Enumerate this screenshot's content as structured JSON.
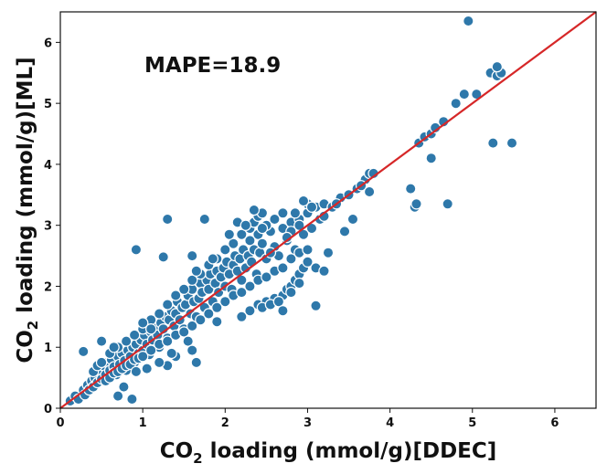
{
  "chart_data": {
    "type": "scatter",
    "annotation": "MAPE=18.9",
    "xlabel": {
      "prefix": "CO",
      "subscript": "2",
      "suffix": " loading (mmol/g)[DDEC]"
    },
    "ylabel": {
      "prefix": "CO",
      "subscript": "2",
      "suffix": " loading (mmol/g)[ML]"
    },
    "xlim": [
      0,
      6.5
    ],
    "ylim": [
      0,
      6.5
    ],
    "xticks": [
      0,
      1,
      2,
      3,
      4,
      5,
      6
    ],
    "yticks": [
      0,
      1,
      2,
      3,
      4,
      5,
      6
    ],
    "point_color": "#2e78aa",
    "line_color": "#d62728",
    "reference_line": {
      "label": "y = x",
      "from": [
        0,
        0
      ],
      "to": [
        6.5,
        6.5
      ]
    },
    "series": [
      {
        "name": "samples",
        "points": [
          [
            0.12,
            0.12
          ],
          [
            0.18,
            0.2
          ],
          [
            0.22,
            0.15
          ],
          [
            0.28,
            0.3
          ],
          [
            0.3,
            0.22
          ],
          [
            0.33,
            0.38
          ],
          [
            0.35,
            0.3
          ],
          [
            0.38,
            0.45
          ],
          [
            0.4,
            0.35
          ],
          [
            0.42,
            0.5
          ],
          [
            0.45,
            0.42
          ],
          [
            0.47,
            0.6
          ],
          [
            0.5,
            0.48
          ],
          [
            0.52,
            0.7
          ],
          [
            0.55,
            0.55
          ],
          [
            0.57,
            0.75
          ],
          [
            0.6,
            0.62
          ],
          [
            0.62,
            0.8
          ],
          [
            0.65,
            0.68
          ],
          [
            0.68,
            0.55
          ],
          [
            0.7,
            0.85
          ],
          [
            0.72,
            0.72
          ],
          [
            0.75,
            0.9
          ],
          [
            0.78,
            0.78
          ],
          [
            0.8,
            0.62
          ],
          [
            0.82,
            0.95
          ],
          [
            0.85,
            0.85
          ],
          [
            0.88,
            1.0
          ],
          [
            0.9,
            0.75
          ],
          [
            0.92,
            1.05
          ],
          [
            0.95,
            0.9
          ],
          [
            0.98,
            1.12
          ],
          [
            1.0,
            0.95
          ],
          [
            1.02,
            1.2
          ],
          [
            1.05,
            1.05
          ],
          [
            1.08,
            0.88
          ],
          [
            1.1,
            1.25
          ],
          [
            1.12,
            1.12
          ],
          [
            1.15,
            1.35
          ],
          [
            1.18,
            1.2
          ],
          [
            1.2,
            1.0
          ],
          [
            1.22,
            1.4
          ],
          [
            1.25,
            1.3
          ],
          [
            1.28,
            1.5
          ],
          [
            1.3,
            1.15
          ],
          [
            1.32,
            1.45
          ],
          [
            1.35,
            1.6
          ],
          [
            1.38,
            1.35
          ],
          [
            1.4,
            1.55
          ],
          [
            1.42,
            1.75
          ],
          [
            1.45,
            1.45
          ],
          [
            1.48,
            1.65
          ],
          [
            1.5,
            1.3
          ],
          [
            1.52,
            1.7
          ],
          [
            1.55,
            1.85
          ],
          [
            1.58,
            1.55
          ],
          [
            1.6,
            1.95
          ],
          [
            1.62,
            1.75
          ],
          [
            1.65,
            1.5
          ],
          [
            1.68,
            1.8
          ],
          [
            1.7,
            2.05
          ],
          [
            1.72,
            1.9
          ],
          [
            1.75,
            1.65
          ],
          [
            1.78,
            2.1
          ],
          [
            1.8,
            1.95
          ],
          [
            1.82,
            2.2
          ],
          [
            1.85,
            1.75
          ],
          [
            1.88,
            2.05
          ],
          [
            1.9,
            2.25
          ],
          [
            1.92,
            1.9
          ],
          [
            1.95,
            2.15
          ],
          [
            1.98,
            2.3
          ],
          [
            2.0,
            2.0
          ],
          [
            2.02,
            2.4
          ],
          [
            2.05,
            2.2
          ],
          [
            2.08,
            1.95
          ],
          [
            2.1,
            2.35
          ],
          [
            2.12,
            2.5
          ],
          [
            2.15,
            2.25
          ],
          [
            2.18,
            2.45
          ],
          [
            2.2,
            2.1
          ],
          [
            2.22,
            2.6
          ],
          [
            2.25,
            2.3
          ],
          [
            2.28,
            2.5
          ],
          [
            2.3,
            2.75
          ],
          [
            2.32,
            2.4
          ],
          [
            2.35,
            2.6
          ],
          [
            2.38,
            2.2
          ],
          [
            2.4,
            2.85
          ],
          [
            2.42,
            2.55
          ],
          [
            2.45,
            2.7
          ],
          [
            2.5,
            2.45
          ],
          [
            2.55,
            2.9
          ],
          [
            2.6,
            2.65
          ],
          [
            2.65,
            2.5
          ],
          [
            2.7,
            2.95
          ],
          [
            2.75,
            2.75
          ],
          [
            2.8,
            3.05
          ],
          [
            2.85,
            2.6
          ],
          [
            2.9,
            3.1
          ],
          [
            2.95,
            2.85
          ],
          [
            3.0,
            3.2
          ],
          [
            3.05,
            2.95
          ],
          [
            3.1,
            3.3
          ],
          [
            3.15,
            3.1
          ],
          [
            3.2,
            3.35
          ],
          [
            3.3,
            3.3
          ],
          [
            3.4,
            3.45
          ],
          [
            3.5,
            3.5
          ],
          [
            3.6,
            3.6
          ],
          [
            3.7,
            3.75
          ],
          [
            3.75,
            3.85
          ],
          [
            0.55,
            0.45
          ],
          [
            0.6,
            0.5
          ],
          [
            0.65,
            0.58
          ],
          [
            0.7,
            0.6
          ],
          [
            0.75,
            0.65
          ],
          [
            0.8,
            0.7
          ],
          [
            0.85,
            0.72
          ],
          [
            0.9,
            0.8
          ],
          [
            0.95,
            0.82
          ],
          [
            1.0,
            0.85
          ],
          [
            1.1,
            0.95
          ],
          [
            1.2,
            1.05
          ],
          [
            1.3,
            1.1
          ],
          [
            1.4,
            1.2
          ],
          [
            1.5,
            1.25
          ],
          [
            1.6,
            1.35
          ],
          [
            1.7,
            1.45
          ],
          [
            1.8,
            1.55
          ],
          [
            1.9,
            1.65
          ],
          [
            2.0,
            1.75
          ],
          [
            2.1,
            1.85
          ],
          [
            2.2,
            1.9
          ],
          [
            2.3,
            2.0
          ],
          [
            2.4,
            2.1
          ],
          [
            2.5,
            2.15
          ],
          [
            2.6,
            2.25
          ],
          [
            2.7,
            2.3
          ],
          [
            2.8,
            2.45
          ],
          [
            2.9,
            2.55
          ],
          [
            3.0,
            2.6
          ],
          [
            0.4,
            0.6
          ],
          [
            0.45,
            0.7
          ],
          [
            0.5,
            0.75
          ],
          [
            0.6,
            0.9
          ],
          [
            0.7,
            1.0
          ],
          [
            0.8,
            1.1
          ],
          [
            0.9,
            1.2
          ],
          [
            1.0,
            1.3
          ],
          [
            1.1,
            1.45
          ],
          [
            1.2,
            1.55
          ],
          [
            1.3,
            1.7
          ],
          [
            1.4,
            1.85
          ],
          [
            1.5,
            1.95
          ],
          [
            1.6,
            2.1
          ],
          [
            1.7,
            2.2
          ],
          [
            1.8,
            2.35
          ],
          [
            1.9,
            2.45
          ],
          [
            2.0,
            2.6
          ],
          [
            2.1,
            2.7
          ],
          [
            2.2,
            2.85
          ],
          [
            2.3,
            2.95
          ],
          [
            2.35,
            3.05
          ],
          [
            2.4,
            3.15
          ],
          [
            2.45,
            3.2
          ],
          [
            2.5,
            3.0
          ],
          [
            2.6,
            3.1
          ],
          [
            2.7,
            3.2
          ],
          [
            2.8,
            2.9
          ],
          [
            2.9,
            3.0
          ],
          [
            3.0,
            3.35
          ],
          [
            2.2,
            1.5
          ],
          [
            2.3,
            1.6
          ],
          [
            2.4,
            1.7
          ],
          [
            2.5,
            1.75
          ],
          [
            2.6,
            1.8
          ],
          [
            2.7,
            1.85
          ],
          [
            2.75,
            1.95
          ],
          [
            2.8,
            2.0
          ],
          [
            2.85,
            2.1
          ],
          [
            2.9,
            2.2
          ],
          [
            2.95,
            2.3
          ],
          [
            3.0,
            2.4
          ],
          [
            2.45,
            1.65
          ],
          [
            2.55,
            1.7
          ],
          [
            2.65,
            1.75
          ],
          [
            2.7,
            1.6
          ],
          [
            2.8,
            1.9
          ],
          [
            2.9,
            2.05
          ],
          [
            0.92,
            2.6
          ],
          [
            1.3,
            3.1
          ],
          [
            1.75,
            3.1
          ],
          [
            1.25,
            2.48
          ],
          [
            1.6,
            2.5
          ],
          [
            1.85,
            2.45
          ],
          [
            1.65,
            2.25
          ],
          [
            1.9,
            1.42
          ],
          [
            2.05,
            2.85
          ],
          [
            2.15,
            3.05
          ],
          [
            2.25,
            3.0
          ],
          [
            2.35,
            3.25
          ],
          [
            2.45,
            2.95
          ],
          [
            2.55,
            2.55
          ],
          [
            2.6,
            3.1
          ],
          [
            2.75,
            2.8
          ],
          [
            2.85,
            3.2
          ],
          [
            2.95,
            3.4
          ],
          [
            3.05,
            3.3
          ],
          [
            3.2,
            3.15
          ],
          [
            3.25,
            2.55
          ],
          [
            3.35,
            3.35
          ],
          [
            3.45,
            2.9
          ],
          [
            3.55,
            3.1
          ],
          [
            3.65,
            3.65
          ],
          [
            3.75,
            3.55
          ],
          [
            3.8,
            3.85
          ],
          [
            3.1,
            2.3
          ],
          [
            3.2,
            2.25
          ],
          [
            3.1,
            1.68
          ],
          [
            1.55,
            1.1
          ],
          [
            1.6,
            0.95
          ],
          [
            1.4,
            0.85
          ],
          [
            1.65,
            0.75
          ],
          [
            1.3,
            0.7
          ],
          [
            1.05,
            0.65
          ],
          [
            0.7,
            0.2
          ],
          [
            0.87,
            0.15
          ],
          [
            0.77,
            0.35
          ],
          [
            0.92,
            0.6
          ],
          [
            0.28,
            0.93
          ],
          [
            0.5,
            1.1
          ],
          [
            0.65,
            1.0
          ],
          [
            1.0,
            1.4
          ],
          [
            1.1,
            1.3
          ],
          [
            1.2,
            0.75
          ],
          [
            1.35,
            0.9
          ],
          [
            4.25,
            3.6
          ],
          [
            4.3,
            3.3
          ],
          [
            4.32,
            3.35
          ],
          [
            4.35,
            4.35
          ],
          [
            4.42,
            4.45
          ],
          [
            4.5,
            4.5
          ],
          [
            4.55,
            4.6
          ],
          [
            4.65,
            4.7
          ],
          [
            4.7,
            3.35
          ],
          [
            4.8,
            5.0
          ],
          [
            4.5,
            4.1
          ],
          [
            4.9,
            5.15
          ],
          [
            4.95,
            6.35
          ],
          [
            5.05,
            5.15
          ],
          [
            5.22,
            5.5
          ],
          [
            5.25,
            4.35
          ],
          [
            5.3,
            5.45
          ],
          [
            5.35,
            5.5
          ],
          [
            5.3,
            5.6
          ],
          [
            5.48,
            4.35
          ]
        ]
      }
    ]
  }
}
